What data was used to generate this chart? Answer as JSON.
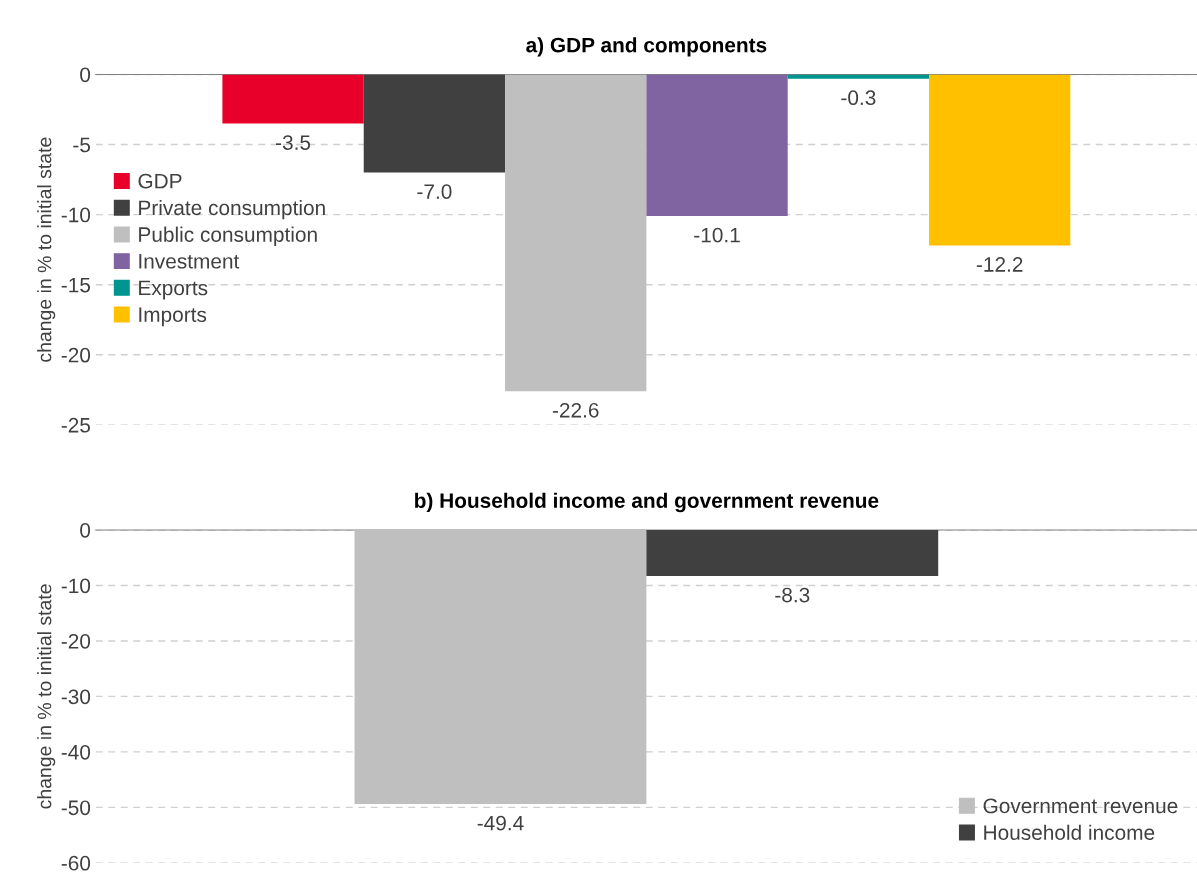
{
  "chart_data": [
    {
      "type": "bar",
      "title": "a) GDP and components",
      "ylabel": "change in % to initial state",
      "categories": [
        null
      ],
      "series": [
        {
          "name": "GDP",
          "color": "#e8002b",
          "values": [
            -3.5
          ],
          "value_labels": [
            "-3.5"
          ]
        },
        {
          "name": "Private consumption",
          "color": "#404040",
          "values": [
            -7.0
          ],
          "value_labels": [
            "-7.0"
          ]
        },
        {
          "name": "Public consumption",
          "color": "#bfbfbf",
          "values": [
            -22.6
          ],
          "value_labels": [
            "-22.6"
          ]
        },
        {
          "name": "Investment",
          "color": "#8064a2",
          "values": [
            -10.1
          ],
          "value_labels": [
            "-10.1"
          ]
        },
        {
          "name": "Exports",
          "color": "#00968f",
          "values": [
            -0.3
          ],
          "value_labels": [
            "-0.3"
          ]
        },
        {
          "name": "Imports",
          "color": "#ffc000",
          "values": [
            -12.2
          ],
          "value_labels": [
            "-12.2"
          ]
        }
      ],
      "ylim": [
        -25,
        0
      ],
      "yticks": [
        -25,
        -20,
        -15,
        -10,
        -5,
        0
      ],
      "grid": "y",
      "legend": "left"
    },
    {
      "type": "bar",
      "title": "b) Household income and government revenue",
      "ylabel": "change in % to initial state",
      "categories": [
        null
      ],
      "series": [
        {
          "name": "Government revenue",
          "color": "#bfbfbf",
          "values": [
            -49.4
          ],
          "value_labels": [
            "-49.4"
          ]
        },
        {
          "name": "Household income",
          "color": "#404040",
          "values": [
            -8.3
          ],
          "value_labels": [
            "-8.3"
          ]
        }
      ],
      "ylim": [
        -60,
        0
      ],
      "yticks": [
        -60,
        -50,
        -40,
        -30,
        -20,
        -10,
        0
      ],
      "grid": "y",
      "legend": "lower right"
    }
  ]
}
